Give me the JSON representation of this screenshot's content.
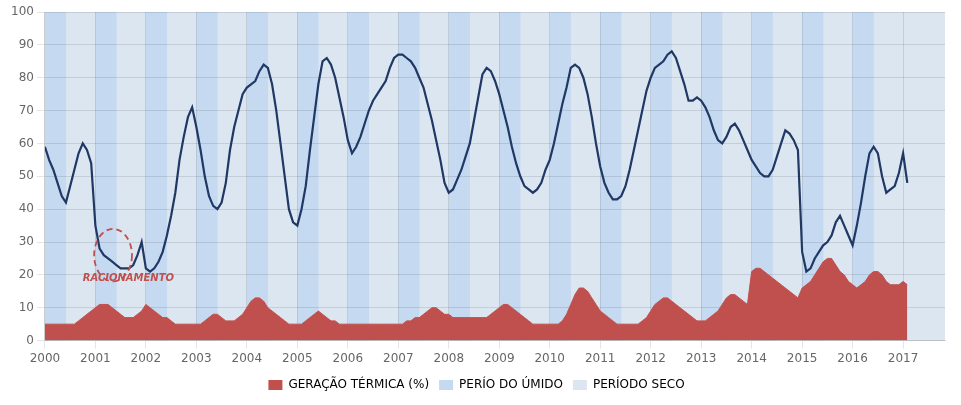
{
  "chart_data": {
    "type": "line",
    "x": [
      2000,
      2000.0833333333333,
      2000.1666666666667,
      2000.25,
      2000.3333333333333,
      2000.4166666666667,
      2000.5,
      2000.5833333333333,
      2000.6666666666667,
      2000.75,
      2000.8333333333333,
      2000.9166666666667,
      2001,
      2001.0833333333333,
      2001.1666666666667,
      2001.25,
      2001.3333333333333,
      2001.4166666666667,
      2001.5,
      2001.5833333333333,
      2001.6666666666667,
      2001.75,
      2001.8333333333333,
      2001.9166666666667,
      2002,
      2002.0833333333333,
      2002.1666666666667,
      2002.25,
      2002.3333333333333,
      2002.4166666666667,
      2002.5,
      2002.5833333333333,
      2002.6666666666667,
      2002.75,
      2002.8333333333333,
      2002.9166666666667,
      2003,
      2003.0833333333333,
      2003.1666666666667,
      2003.25,
      2003.3333333333333,
      2003.4166666666667,
      2003.5,
      2003.5833333333333,
      2003.6666666666667,
      2003.75,
      2003.8333333333333,
      2003.9166666666667,
      2004,
      2004.0833333333333,
      2004.1666666666667,
      2004.25,
      2004.3333333333333,
      2004.4166666666667,
      2004.5,
      2004.5833333333333,
      2004.6666666666667,
      2004.75,
      2004.8333333333333,
      2004.9166666666667,
      2005,
      2005.0833333333333,
      2005.1666666666667,
      2005.25,
      2005.3333333333333,
      2005.4166666666667,
      2005.5,
      2005.5833333333333,
      2005.6666666666667,
      2005.75,
      2005.8333333333333,
      2005.9166666666667,
      2006,
      2006.0833333333333,
      2006.1666666666667,
      2006.25,
      2006.3333333333333,
      2006.4166666666667,
      2006.5,
      2006.5833333333333,
      2006.6666666666667,
      2006.75,
      2006.8333333333333,
      2006.9166666666667,
      2007,
      2007.0833333333333,
      2007.1666666666667,
      2007.25,
      2007.3333333333333,
      2007.4166666666667,
      2007.5,
      2007.5833333333333,
      2007.6666666666667,
      2007.75,
      2007.8333333333333,
      2007.9166666666667,
      2008,
      2008.0833333333333,
      2008.1666666666667,
      2008.25,
      2008.3333333333333,
      2008.4166666666667,
      2008.5,
      2008.5833333333333,
      2008.6666666666667,
      2008.75,
      2008.8333333333333,
      2008.9166666666667,
      2009,
      2009.0833333333333,
      2009.1666666666667,
      2009.25,
      2009.3333333333333,
      2009.4166666666667,
      2009.5,
      2009.5833333333333,
      2009.6666666666667,
      2009.75,
      2009.8333333333333,
      2009.9166666666667,
      2010,
      2010.0833333333333,
      2010.1666666666667,
      2010.25,
      2010.3333333333333,
      2010.4166666666667,
      2010.5,
      2010.5833333333333,
      2010.6666666666667,
      2010.75,
      2010.8333333333333,
      2010.9166666666667,
      2011,
      2011.0833333333333,
      2011.1666666666667,
      2011.25,
      2011.3333333333333,
      2011.4166666666667,
      2011.5,
      2011.5833333333333,
      2011.6666666666667,
      2011.75,
      2011.8333333333333,
      2011.9166666666667,
      2012,
      2012.0833333333333,
      2012.1666666666667,
      2012.25,
      2012.3333333333333,
      2012.4166666666667,
      2012.5,
      2012.5833333333333,
      2012.6666666666667,
      2012.75,
      2012.8333333333333,
      2012.9166666666667,
      2013,
      2013.0833333333333,
      2013.1666666666667,
      2013.25,
      2013.3333333333333,
      2013.4166666666667,
      2013.5,
      2013.5833333333333,
      2013.6666666666667,
      2013.75,
      2013.8333333333333,
      2013.9166666666667,
      2014,
      2014.0833333333333,
      2014.1666666666667,
      2014.25,
      2014.3333333333333,
      2014.4166666666667,
      2014.5,
      2014.5833333333333,
      2014.6666666666667,
      2014.75,
      2014.8333333333333,
      2014.9166666666667,
      2015,
      2015.0833333333333,
      2015.1666666666667,
      2015.25,
      2015.3333333333333,
      2015.4166666666667,
      2015.5,
      2015.5833333333333,
      2015.6666666666667,
      2015.75,
      2015.8333333333333,
      2015.9166666666667,
      2016,
      2016.0833333333333,
      2016.1666666666667,
      2016.25,
      2016.3333333333333,
      2016.4166666666667,
      2016.5,
      2016.5833333333333,
      2016.6666666666667,
      2016.75,
      2016.8333333333333,
      2016.9166666666667,
      2017,
      2017.0833333333333
    ],
    "xlim": [
      2000.0,
      2017.83
    ],
    "xticks": [
      2000,
      2001,
      2002,
      2003,
      2004,
      2005,
      2006,
      2007,
      2008,
      2009,
      2010,
      2011,
      2012,
      2013,
      2014,
      2015,
      2016,
      2017
    ],
    "ylim": [
      0,
      100
    ],
    "yticks": [
      0,
      10,
      20,
      30,
      40,
      50,
      60,
      70,
      80,
      90,
      100
    ],
    "grid": true,
    "legend": "bottom",
    "series": [
      {
        "name": "GERAÇÃO TÉRMICA (%)",
        "type": "area",
        "color": "#C0504D",
        "values": [
          5,
          5,
          5,
          5,
          5,
          5,
          5,
          5,
          6,
          7,
          8,
          9,
          10,
          11,
          11,
          11,
          10,
          9,
          8,
          7,
          7,
          7,
          8,
          9,
          11,
          10,
          9,
          8,
          7,
          7,
          6,
          5,
          5,
          5,
          5,
          5,
          5,
          5,
          6,
          7,
          8,
          8,
          7,
          6,
          6,
          6,
          7,
          8,
          10,
          12,
          13,
          13,
          12,
          10,
          9,
          8,
          7,
          6,
          5,
          5,
          5,
          5,
          6,
          7,
          8,
          9,
          8,
          7,
          6,
          6,
          5,
          5,
          5,
          5,
          5,
          5,
          5,
          5,
          5,
          5,
          5,
          5,
          5,
          5,
          5,
          5,
          6,
          6,
          7,
          7,
          8,
          9,
          10,
          10,
          9,
          8,
          8,
          7,
          7,
          7,
          7,
          7,
          7,
          7,
          7,
          7,
          8,
          9,
          10,
          11,
          11,
          10,
          9,
          8,
          7,
          6,
          5,
          5,
          5,
          5,
          5,
          5,
          5,
          6,
          8,
          11,
          14,
          16,
          16,
          15,
          13,
          11,
          9,
          8,
          7,
          6,
          5,
          5,
          5,
          5,
          5,
          5,
          6,
          7,
          9,
          11,
          12,
          13,
          13,
          12,
          11,
          10,
          9,
          8,
          7,
          6,
          6,
          6,
          7,
          8,
          9,
          11,
          13,
          14,
          14,
          13,
          12,
          11,
          21,
          22,
          22,
          21,
          20,
          19,
          18,
          17,
          16,
          15,
          14,
          13,
          16,
          17,
          18,
          20,
          22,
          24,
          25,
          25,
          23,
          21,
          20,
          18,
          17,
          16,
          17,
          18,
          20,
          21,
          21,
          20,
          18,
          17,
          17,
          17,
          18,
          17
        ]
      },
      {
        "type": "line",
        "color": "#1F3864",
        "values": [
          59,
          55,
          52,
          48,
          44,
          42,
          47,
          52,
          57,
          60,
          58,
          54,
          35,
          28,
          26,
          25,
          24,
          23,
          22,
          22,
          22,
          23,
          26,
          30,
          22,
          21,
          22,
          24,
          27,
          32,
          38,
          45,
          55,
          62,
          68,
          71,
          65,
          58,
          50,
          44,
          41,
          40,
          42,
          48,
          58,
          65,
          70,
          75,
          77,
          78,
          79,
          82,
          84,
          83,
          78,
          70,
          60,
          50,
          40,
          36,
          35,
          40,
          47,
          58,
          68,
          78,
          85,
          86,
          84,
          80,
          74,
          68,
          61,
          57,
          59,
          62,
          66,
          70,
          73,
          75,
          77,
          79,
          83,
          86,
          87,
          87,
          86,
          85,
          83,
          80,
          77,
          72,
          67,
          61,
          55,
          48,
          45,
          46,
          49,
          52,
          56,
          60,
          67,
          74,
          81,
          83,
          82,
          79,
          75,
          70,
          65,
          59,
          54,
          50,
          47,
          46,
          45,
          46,
          48,
          52,
          55,
          60,
          66,
          72,
          77,
          83,
          84,
          83,
          80,
          75,
          68,
          60,
          53,
          48,
          45,
          43,
          43,
          44,
          47,
          52,
          58,
          64,
          70,
          76,
          80,
          83,
          84,
          85,
          87,
          88,
          86,
          82,
          78,
          73,
          73,
          74,
          73,
          71,
          68,
          64,
          61,
          60,
          62,
          65,
          66,
          64,
          61,
          58,
          55,
          53,
          51,
          50,
          50,
          52,
          56,
          60,
          64,
          63,
          61,
          58,
          27,
          21,
          22,
          25,
          27,
          29,
          30,
          32,
          36,
          38,
          35,
          32,
          29,
          35,
          42,
          50,
          57,
          59,
          57,
          50,
          45,
          46,
          47,
          51,
          57,
          48
        ]
      }
    ],
    "wet_periods": [
      [
        2000.0,
        2000.42
      ],
      [
        2001.0,
        2001.42
      ],
      [
        2002.0,
        2002.42
      ],
      [
        2003.0,
        2003.42
      ],
      [
        2004.0,
        2004.42
      ],
      [
        2005.0,
        2005.42
      ],
      [
        2006.0,
        2006.42
      ],
      [
        2007.0,
        2007.42
      ],
      [
        2008.0,
        2008.42
      ],
      [
        2009.0,
        2009.42
      ],
      [
        2010.0,
        2010.42
      ],
      [
        2011.0,
        2011.42
      ],
      [
        2012.0,
        2012.42
      ],
      [
        2013.0,
        2013.42
      ],
      [
        2014.0,
        2014.42
      ],
      [
        2015.0,
        2015.42
      ],
      [
        2016.0,
        2016.42
      ]
    ],
    "wet_name": "PERÍO DO ÚMIDO",
    "wet_color": "#c5d9f1",
    "dry_name": "PERÍODO SECO",
    "dry_color": "#dce6f1",
    "highlight": {
      "x": 2001.35,
      "y": 26,
      "width": 0.75,
      "height": 16,
      "color": "#C0504D",
      "line_style": "dashed"
    },
    "annotations": [
      {
        "text": "RACIONAMENTO",
        "x": 2000.75,
        "y": 18,
        "color": "#C0504D"
      }
    ]
  }
}
